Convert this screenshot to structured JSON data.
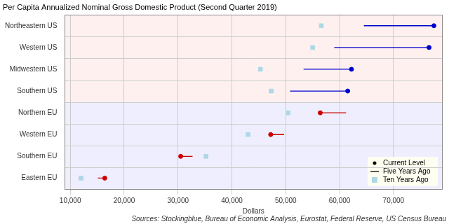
{
  "chart_data": {
    "type": "dumbbell",
    "title": "Per Capita Annualized Nominal Gross Domestic Product (Second Quarter 2019)",
    "xlabel": "Dollars",
    "source": "Sources: Stockingblue, Bureau of Economic Analysis, Eurostat, Federal Reserve, US Census Bureau",
    "orientation": "horizontal",
    "categories": [
      "Northeastern US",
      "Western US",
      "Midwestern US",
      "Southern US",
      "Northern EU",
      "Western EU",
      "Southern EU",
      "Eastern EU"
    ],
    "series": [
      {
        "name": "Current Level",
        "marker": "circle",
        "colors": [
          "#0000cc",
          "#0000cc",
          "#0000cc",
          "#0000cc",
          "#cc0000",
          "#cc0000",
          "#cc0000",
          "#cc0000"
        ],
        "values": [
          77500,
          76600,
          62200,
          61500,
          56400,
          47200,
          30500,
          16400
        ]
      },
      {
        "name": "Five Years Ago",
        "line_style": "solid",
        "colors": [
          "#0000cc",
          "#0000cc",
          "#0000cc",
          "#0000cc",
          "#cc0000",
          "#cc0000",
          "#cc0000",
          "#cc0000"
        ],
        "values": [
          64500,
          59000,
          53300,
          50800,
          61200,
          49700,
          32700,
          15100
        ]
      },
      {
        "name": "Ten Years Ago",
        "marker": "square",
        "color": "#add8e6",
        "values": [
          56600,
          55000,
          45300,
          47300,
          50400,
          43000,
          35200,
          12000
        ]
      }
    ],
    "xlim": [
      9000,
      79000
    ],
    "xticks": [
      {
        "value": 10000,
        "label": "10,000"
      },
      {
        "value": 20000,
        "label": "20,000"
      },
      {
        "value": 30000,
        "label": "30,000"
      },
      {
        "value": 40000,
        "label": "40,000"
      },
      {
        "value": 50000,
        "label": "50,000"
      },
      {
        "value": 60000,
        "label": "60,000"
      },
      {
        "value": 70000,
        "label": "70,000"
      }
    ],
    "grid": true,
    "legend": "lower right"
  }
}
